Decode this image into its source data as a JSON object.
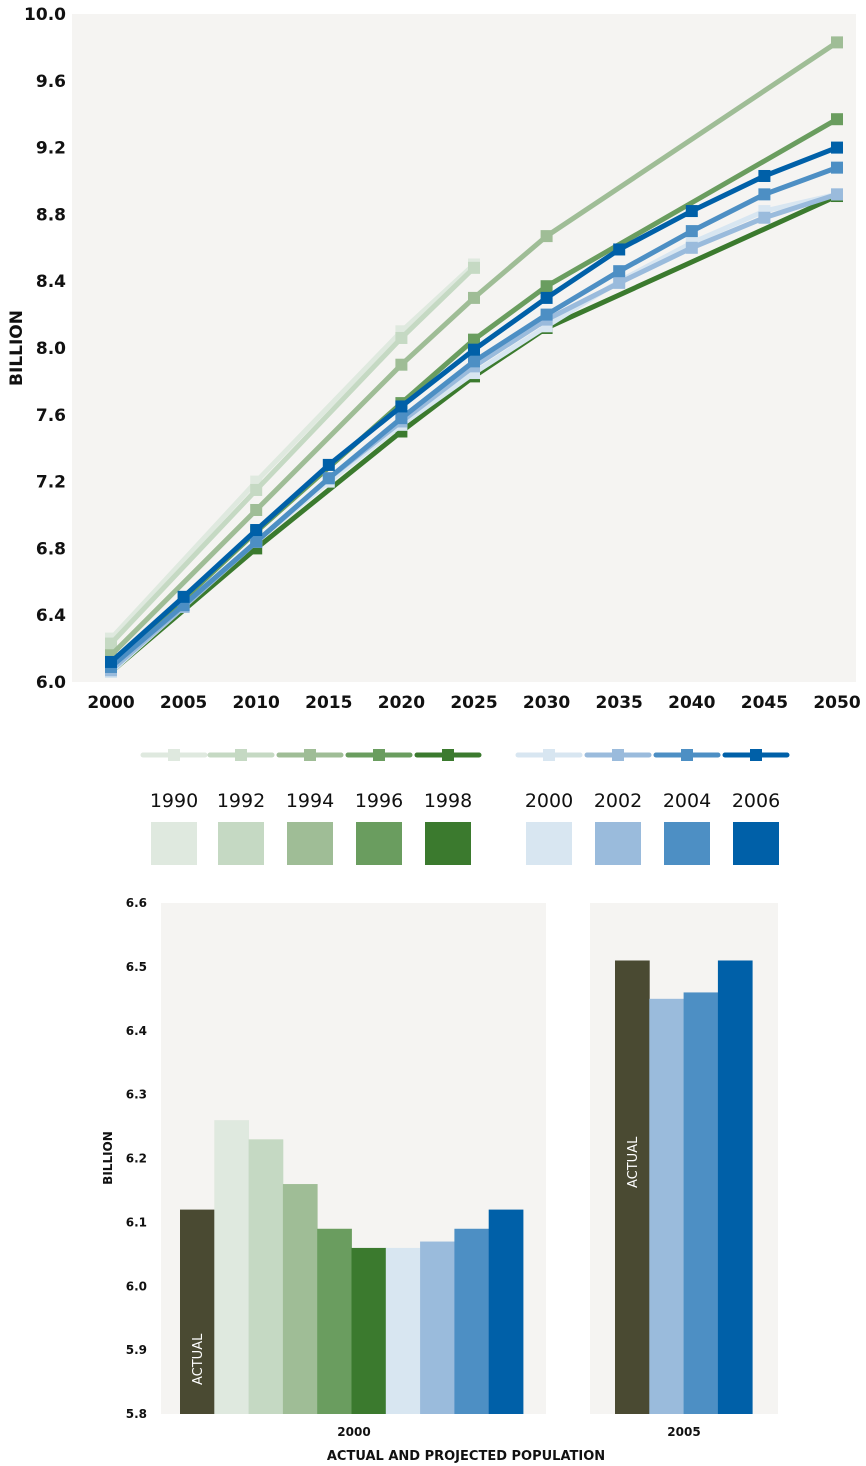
{
  "chart_data": [
    {
      "type": "line",
      "ylabel": "BILLION",
      "ylim": [
        6.0,
        10.0
      ],
      "yticks": [
        "6.0",
        "6.4",
        "6.8",
        "7.2",
        "7.6",
        "8.0",
        "8.4",
        "8.8",
        "9.2",
        "9.6",
        "10.0"
      ],
      "x": [
        "2000",
        "2005",
        "2010",
        "2015",
        "2020",
        "2025",
        "2030",
        "2035",
        "2040",
        "2045",
        "2050"
      ],
      "grid": false,
      "series": [
        {
          "name": "1990",
          "color": "#dfe9df",
          "values": [
            6.26,
            null,
            7.2,
            null,
            8.1,
            8.5,
            null,
            null,
            null,
            null,
            null
          ]
        },
        {
          "name": "1992",
          "color": "#c5d9c3",
          "values": [
            6.23,
            null,
            7.15,
            null,
            8.06,
            8.48,
            null,
            null,
            null,
            null,
            null
          ]
        },
        {
          "name": "1994",
          "color": "#9fbd96",
          "values": [
            6.16,
            null,
            7.03,
            null,
            7.9,
            8.3,
            8.67,
            null,
            null,
            null,
            9.83
          ]
        },
        {
          "name": "1996",
          "color": "#6a9d5f",
          "values": [
            6.09,
            null,
            6.9,
            null,
            7.67,
            8.05,
            8.37,
            null,
            null,
            null,
            9.37
          ]
        },
        {
          "name": "1998",
          "color": "#3b7a2e",
          "values": [
            6.06,
            null,
            6.8,
            null,
            7.5,
            7.83,
            8.12,
            null,
            null,
            null,
            8.91
          ]
        },
        {
          "name": "2000",
          "color": "#d8e6f1",
          "values": [
            6.06,
            6.45,
            6.84,
            7.2,
            7.54,
            7.85,
            8.13,
            8.4,
            8.63,
            8.82,
            8.92
          ]
        },
        {
          "name": "2002",
          "color": "#9abbdc",
          "values": [
            6.07,
            6.45,
            6.84,
            7.22,
            7.56,
            7.89,
            8.17,
            8.39,
            8.6,
            8.78,
            8.92
          ]
        },
        {
          "name": "2004",
          "color": "#4d8fc4",
          "values": [
            6.09,
            6.46,
            6.84,
            7.22,
            7.58,
            7.92,
            8.2,
            8.46,
            8.7,
            8.92,
            9.08
          ]
        },
        {
          "name": "2006",
          "color": "#0060a8",
          "values": [
            6.12,
            6.51,
            6.91,
            7.3,
            7.65,
            7.99,
            8.3,
            8.59,
            8.82,
            9.03,
            9.2
          ]
        }
      ],
      "legend_position": "bottom"
    },
    {
      "type": "bar",
      "ylabel": "BILLION",
      "xlabel": "ACTUAL AND PROJECTED POPULATION",
      "ylim": [
        5.8,
        6.6
      ],
      "yticks": [
        "5.8",
        "5.9",
        "6.0",
        "6.1",
        "6.2",
        "6.3",
        "6.4",
        "6.5",
        "6.6"
      ],
      "groups": [
        {
          "label": "2000",
          "bars": [
            {
              "name": "ACTUAL",
              "value": 6.12,
              "color": "#4a4a32",
              "label": "ACTUAL"
            },
            {
              "name": "1990",
              "value": 6.26,
              "color": "#dfe9df"
            },
            {
              "name": "1992",
              "value": 6.23,
              "color": "#c5d9c3"
            },
            {
              "name": "1994",
              "value": 6.16,
              "color": "#9fbd96"
            },
            {
              "name": "1996",
              "value": 6.09,
              "color": "#6a9d5f"
            },
            {
              "name": "1998",
              "value": 6.06,
              "color": "#3b7a2e"
            },
            {
              "name": "2000",
              "value": 6.06,
              "color": "#d8e6f1"
            },
            {
              "name": "2002",
              "value": 6.07,
              "color": "#9abbdc"
            },
            {
              "name": "2004",
              "value": 6.09,
              "color": "#4d8fc4"
            },
            {
              "name": "2006",
              "value": 6.12,
              "color": "#0060a8"
            }
          ]
        },
        {
          "label": "2005",
          "bars": [
            {
              "name": "ACTUAL",
              "value": 6.51,
              "color": "#4a4a32",
              "label": "ACTUAL"
            },
            {
              "name": "2002",
              "value": 6.45,
              "color": "#9abbdc"
            },
            {
              "name": "2004",
              "value": 6.46,
              "color": "#4d8fc4"
            },
            {
              "name": "2006",
              "value": 6.51,
              "color": "#0060a8"
            }
          ]
        }
      ]
    }
  ]
}
